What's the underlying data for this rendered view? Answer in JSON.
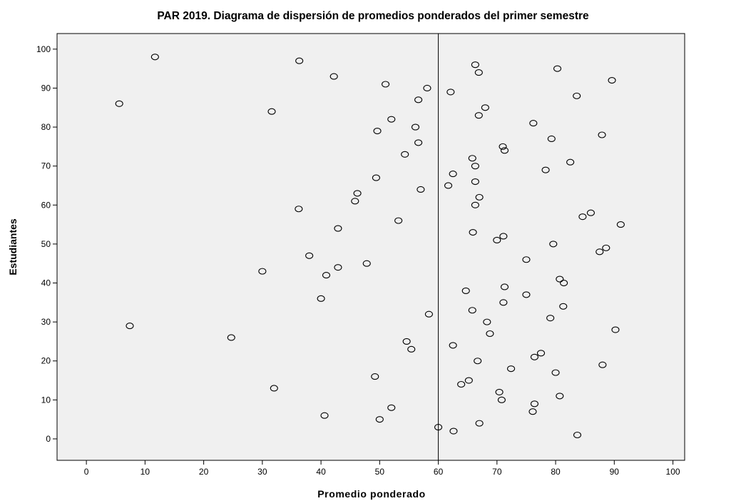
{
  "chart_data": {
    "type": "scatter",
    "title": "PAR 2019. Diagrama de dispersión de promedios ponderados del primer semestre",
    "xlabel": "Promedio ponderado",
    "ylabel": "Estudiantes",
    "xlim": [
      -5,
      102
    ],
    "ylim": [
      -5.5,
      104
    ],
    "xticks": [
      0,
      10,
      20,
      30,
      40,
      50,
      60,
      70,
      80,
      90,
      100
    ],
    "yticks": [
      0,
      10,
      20,
      30,
      40,
      50,
      60,
      70,
      80,
      90,
      100
    ],
    "reference_line_x": 60,
    "grid": false,
    "plot_background": "#f0f0f0",
    "marker": "open-circle",
    "x": [
      11.7,
      36.3,
      66.3,
      80.3,
      42.2,
      66.9,
      51.0,
      58.1,
      89.6,
      62.1,
      83.6,
      56.6,
      5.6,
      31.6,
      68.0,
      52.0,
      66.9,
      76.2,
      49.6,
      56.1,
      87.9,
      79.3,
      56.6,
      71.0,
      71.3,
      54.3,
      65.8,
      82.5,
      66.3,
      78.3,
      49.4,
      62.5,
      66.3,
      57.0,
      61.7,
      67.0,
      46.2,
      45.8,
      66.3,
      36.2,
      86.0,
      84.6,
      53.2,
      91.1,
      42.9,
      65.9,
      71.1,
      70.0,
      79.6,
      88.6,
      87.5,
      38.0,
      75.0,
      47.8,
      42.9,
      30.0,
      40.9,
      80.7,
      81.4,
      71.3,
      64.7,
      75.0,
      40.0,
      71.1,
      81.3,
      65.8,
      58.4,
      79.1,
      68.3,
      7.4,
      90.2,
      68.8,
      24.7,
      54.6,
      62.5,
      55.4,
      77.5,
      76.4,
      66.7,
      88.0,
      72.4,
      80.0,
      49.2,
      65.2,
      63.9,
      32.0,
      70.4,
      80.7,
      70.8,
      76.4,
      52.0,
      76.1,
      40.6,
      50.0,
      60.0,
      67.0,
      62.6,
      83.7
    ],
    "y": [
      98,
      97,
      96,
      95,
      93,
      94,
      91,
      90,
      92,
      89,
      88,
      87,
      86,
      84,
      85,
      82,
      83,
      81,
      79,
      80,
      78,
      77,
      76,
      75,
      74,
      73,
      72,
      71,
      70,
      69,
      67,
      68,
      66,
      64,
      65,
      62,
      63,
      61,
      60,
      59,
      58,
      57,
      56,
      55,
      54,
      53,
      52,
      51,
      50,
      49,
      48,
      47,
      46,
      45,
      44,
      43,
      42,
      41,
      40,
      39,
      38,
      37,
      36,
      35,
      34,
      33,
      32,
      31,
      30,
      29,
      28,
      27,
      26,
      25,
      24,
      23,
      22,
      21,
      20,
      19,
      18,
      17,
      16,
      15,
      14,
      13,
      12,
      11,
      10,
      9,
      8,
      7,
      6,
      5,
      3,
      4,
      2,
      1
    ]
  }
}
